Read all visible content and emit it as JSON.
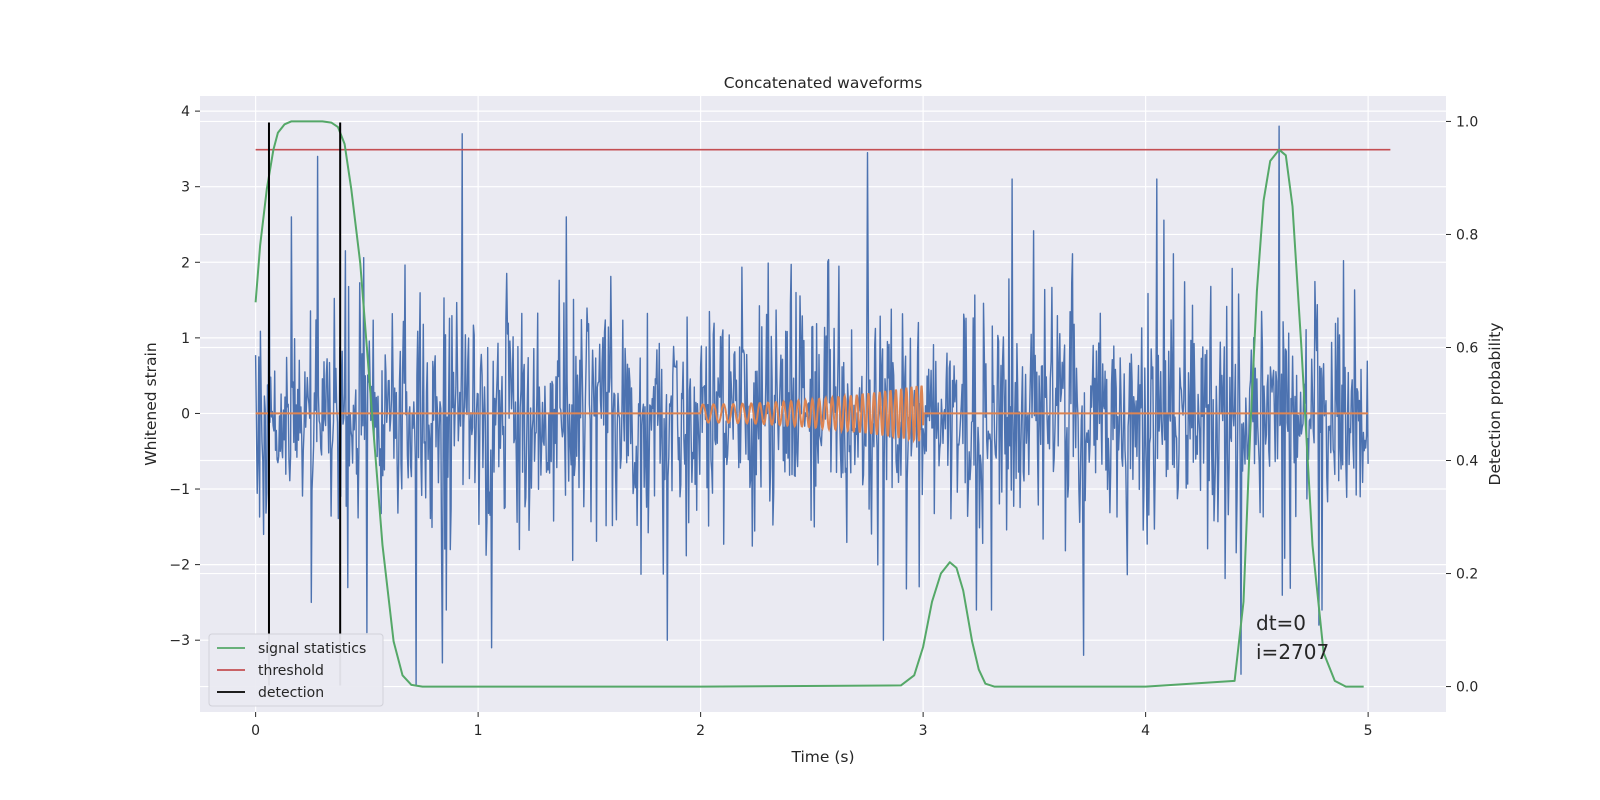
{
  "chart_data": {
    "type": "line",
    "title": "Concatenated waveforms",
    "xlabel": "Time (s)",
    "ylabel": "Whitened strain",
    "y2label": "Detection probability",
    "xlim": [
      -0.25,
      5.35
    ],
    "ylim": [
      -3.95,
      4.2
    ],
    "y2lim": [
      -0.045,
      1.045
    ],
    "x_ticks": [
      0,
      1,
      2,
      3,
      4,
      5
    ],
    "y_ticks": [
      -3,
      -2,
      -1,
      0,
      1,
      2,
      3,
      4
    ],
    "y2_ticks": [
      0.0,
      0.2,
      0.4,
      0.6,
      0.8,
      1.0
    ],
    "y_tick_labels": [
      "−3",
      "−2",
      "−1",
      "0",
      "1",
      "2",
      "3",
      "4"
    ],
    "y2_tick_labels": [
      "0.0",
      "0.2",
      "0.4",
      "0.6",
      "0.8",
      "1.0"
    ],
    "grid": true,
    "legend_position": "lower-left",
    "annotations": [
      "dt=0",
      "i=2707"
    ],
    "series": [
      {
        "color": "#4c72b0",
        "axis": "left",
        "kind": "noise",
        "x_range": [
          0,
          5
        ],
        "spikes": [
          {
            "x": 0.06,
            "y": 2.8
          },
          {
            "x": 0.16,
            "y": 2.6
          },
          {
            "x": 0.25,
            "y": -2.5
          },
          {
            "x": 0.28,
            "y": 3.4
          },
          {
            "x": 0.5,
            "y": -2.9
          },
          {
            "x": 0.72,
            "y": -3.6
          },
          {
            "x": 0.84,
            "y": -3.3
          },
          {
            "x": 0.93,
            "y": 3.7
          },
          {
            "x": 1.06,
            "y": -3.1
          },
          {
            "x": 1.85,
            "y": -3.0
          },
          {
            "x": 2.75,
            "y": 3.45
          },
          {
            "x": 2.82,
            "y": -3.0
          },
          {
            "x": 3.4,
            "y": 3.1
          },
          {
            "x": 3.72,
            "y": -3.2
          },
          {
            "x": 4.05,
            "y": 3.1
          },
          {
            "x": 4.43,
            "y": -3.45
          },
          {
            "x": 4.6,
            "y": 3.8
          },
          {
            "x": 4.78,
            "y": -2.8
          }
        ]
      },
      {
        "color": "#dd8452",
        "axis": "left",
        "kind": "chirp",
        "x_range": [
          0,
          5
        ],
        "chirp": {
          "start": 2.0,
          "end": 3.0,
          "amp_start": 0.12,
          "amp_end": 0.38,
          "freq_start": 20,
          "freq_end": 45
        }
      }
    ],
    "detection_probability": {
      "name": "signal statistics",
      "color": "#55a868",
      "axis": "right",
      "x": [
        0.0,
        0.02,
        0.05,
        0.08,
        0.1,
        0.13,
        0.16,
        0.2,
        0.25,
        0.3,
        0.34,
        0.37,
        0.4,
        0.43,
        0.47,
        0.52,
        0.57,
        0.62,
        0.66,
        0.7,
        0.75,
        1.0,
        2.0,
        2.9,
        2.96,
        3.0,
        3.04,
        3.08,
        3.12,
        3.15,
        3.18,
        3.22,
        3.25,
        3.28,
        3.32,
        3.5,
        4.0,
        4.4,
        4.44,
        4.47,
        4.5,
        4.53,
        4.56,
        4.6,
        4.63,
        4.66,
        4.7,
        4.75,
        4.8,
        4.85,
        4.9,
        4.98
      ],
      "values": [
        0.68,
        0.78,
        0.88,
        0.95,
        0.98,
        0.995,
        1.0,
        1.0,
        1.0,
        1.0,
        0.998,
        0.99,
        0.96,
        0.88,
        0.75,
        0.5,
        0.25,
        0.08,
        0.02,
        0.003,
        0.0,
        0.0,
        0.0,
        0.002,
        0.02,
        0.07,
        0.15,
        0.2,
        0.22,
        0.21,
        0.17,
        0.08,
        0.03,
        0.005,
        0.0,
        0.0,
        0.0,
        0.01,
        0.15,
        0.45,
        0.7,
        0.86,
        0.93,
        0.95,
        0.94,
        0.85,
        0.6,
        0.25,
        0.06,
        0.01,
        0.0,
        0.0
      ]
    },
    "threshold": {
      "name": "threshold",
      "color": "#c44e52",
      "axis": "right",
      "value": 0.95,
      "x_range": [
        0,
        5.1
      ]
    },
    "detections": {
      "name": "detection",
      "color": "#000000",
      "x": [
        0.06,
        0.38
      ],
      "y_range": [
        -3.6,
        3.85
      ]
    }
  }
}
